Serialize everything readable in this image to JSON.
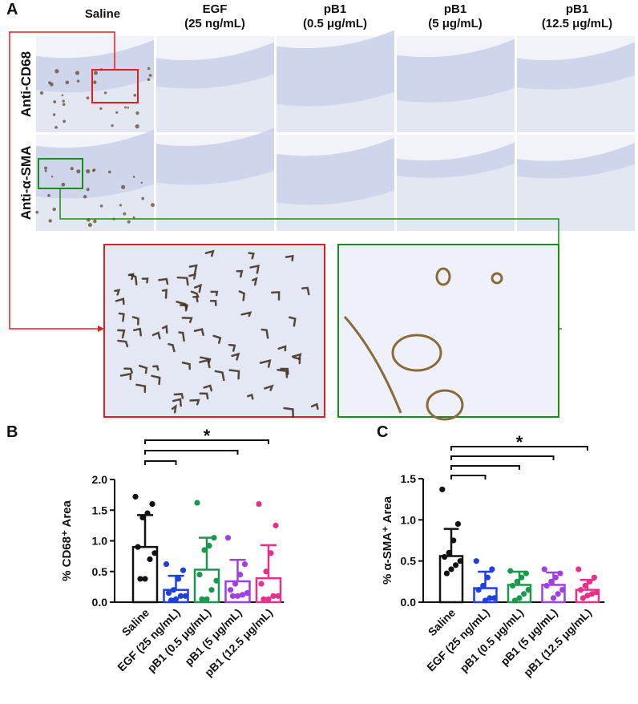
{
  "panel_a": {
    "label": "A",
    "columns": [
      [
        "Saline"
      ],
      [
        "EGF",
        "(25 ng/mL)"
      ],
      [
        "pB1",
        "(0.5 μg/mL)"
      ],
      [
        "pB1",
        "(5 μg/mL)"
      ],
      [
        "pB1",
        "(12.5 μg/mL)"
      ]
    ],
    "rows": [
      "Anti-CD68",
      "Anti-α-SMA"
    ]
  },
  "chart_data": [
    {
      "type": "bar",
      "panel_label": "B",
      "y_label": "% CD68⁺ Area",
      "categories": [
        "Saline",
        "EGF (25 ng/mL)",
        "pB1 (0.5 μg/mL)",
        "pB1 (5 μg/mL)",
        "pB1 (12.5 μg/mL)"
      ],
      "colors": [
        "#111111",
        "#1f3fe0",
        "#1a9850",
        "#a040e0",
        "#e8308a"
      ],
      "values": [
        0.9,
        0.2,
        0.53,
        0.34,
        0.39
      ],
      "errors": [
        0.52,
        0.23,
        0.52,
        0.35,
        0.54
      ],
      "points": [
        [
          1.72,
          1.6,
          1.45,
          1.38,
          0.9,
          0.8,
          0.7,
          0.38,
          0.38
        ],
        [
          0.62,
          0.52,
          0.38,
          0.2,
          0.15,
          0.1,
          0.1,
          0.05,
          0.03
        ],
        [
          1.62,
          1.05,
          0.92,
          0.85,
          0.45,
          0.35,
          0.2,
          0.05,
          0.05
        ],
        [
          1.05,
          0.62,
          0.45,
          0.3,
          0.2,
          0.15,
          0.12,
          0.1,
          0.1
        ],
        [
          1.6,
          1.25,
          0.8,
          0.5,
          0.3,
          0.1,
          0.1,
          0.05,
          0.05
        ]
      ],
      "ylim": [
        0,
        2
      ],
      "yticks": [
        {
          "value": 0,
          "label": "0.0"
        },
        {
          "value": 0.5,
          "label": "0.5"
        },
        {
          "value": 1,
          "label": "1.0"
        },
        {
          "value": 1.5,
          "label": "1.5"
        },
        {
          "value": 2,
          "label": "2.0"
        }
      ],
      "significance": {
        "label": "*",
        "comparisons": [
          4,
          3,
          1
        ]
      }
    },
    {
      "type": "bar",
      "panel_label": "C",
      "y_label": "% α-SMA⁺ Area",
      "categories": [
        "Saline",
        "EGF (25 ng/mL)",
        "pB1 (0.5 μg/mL)",
        "pB1 (5 μg/mL)",
        "pB1 (12.5 μg/mL)"
      ],
      "colors": [
        "#111111",
        "#1f3fe0",
        "#1a9850",
        "#a040e0",
        "#e8308a"
      ],
      "values": [
        0.56,
        0.17,
        0.21,
        0.21,
        0.15
      ],
      "errors": [
        0.33,
        0.2,
        0.16,
        0.15,
        0.12
      ],
      "points": [
        [
          1.37,
          0.95,
          0.75,
          0.6,
          0.55,
          0.5,
          0.45,
          0.4,
          0.35
        ],
        [
          0.5,
          0.4,
          0.3,
          0.2,
          0.15,
          0.05,
          0.05,
          0.02
        ],
        [
          0.38,
          0.35,
          0.3,
          0.25,
          0.2,
          0.15,
          0.1,
          0.05,
          0.02
        ],
        [
          0.4,
          0.35,
          0.3,
          0.25,
          0.2,
          0.15,
          0.1,
          0.05
        ],
        [
          0.4,
          0.3,
          0.25,
          0.2,
          0.15,
          0.12,
          0.1,
          0.08,
          0.05
        ]
      ],
      "ylim": [
        0,
        1.5
      ],
      "yticks": [
        {
          "value": 0,
          "label": "0.0"
        },
        {
          "value": 0.5,
          "label": "0.5"
        },
        {
          "value": 1,
          "label": "1.0"
        },
        {
          "value": 1.5,
          "label": "1.5"
        }
      ],
      "significance": {
        "label": "*",
        "comparisons": [
          4,
          3,
          2,
          1
        ]
      }
    }
  ]
}
